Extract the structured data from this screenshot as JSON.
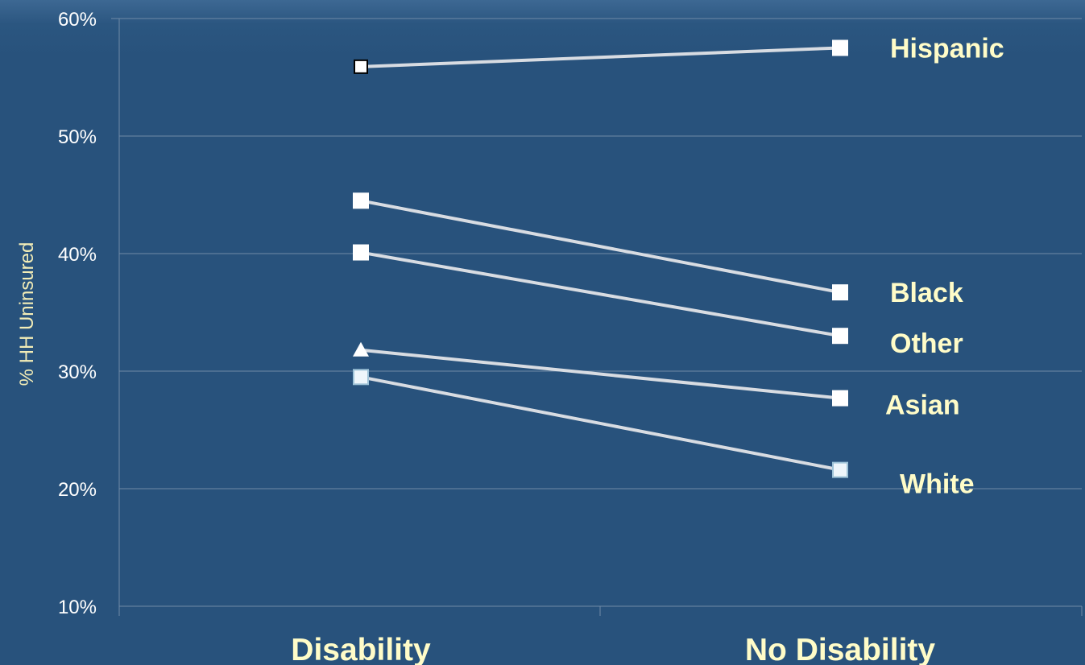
{
  "chart_data": {
    "type": "line",
    "title": "",
    "xlabel": "",
    "ylabel": "% HH Uninsured",
    "categories": [
      "Disability",
      "No Disability"
    ],
    "ylim": [
      0.1,
      0.6
    ],
    "y_ticks": [
      "10%",
      "20%",
      "30%",
      "40%",
      "50%",
      "60%"
    ],
    "grid": true,
    "series": [
      {
        "name": "Hispanic",
        "values": [
          0.559,
          0.575
        ],
        "markers": [
          "square-open",
          "square"
        ]
      },
      {
        "name": "Black",
        "values": [
          0.445,
          0.367
        ],
        "markers": [
          "square",
          "square"
        ]
      },
      {
        "name": "Other",
        "values": [
          0.401,
          0.33
        ],
        "markers": [
          "square",
          "square"
        ]
      },
      {
        "name": "Asian",
        "values": [
          0.318,
          0.277
        ],
        "markers": [
          "triangle",
          "square"
        ]
      },
      {
        "name": "White",
        "values": [
          0.295,
          0.216
        ],
        "markers": [
          "square-light",
          "square-light"
        ]
      }
    ],
    "colors": {
      "background": "#28527c",
      "gridline": "#6f8aa6",
      "line": "#d8dce2",
      "marker": "#ffffff",
      "label": "#fffcc8"
    }
  }
}
